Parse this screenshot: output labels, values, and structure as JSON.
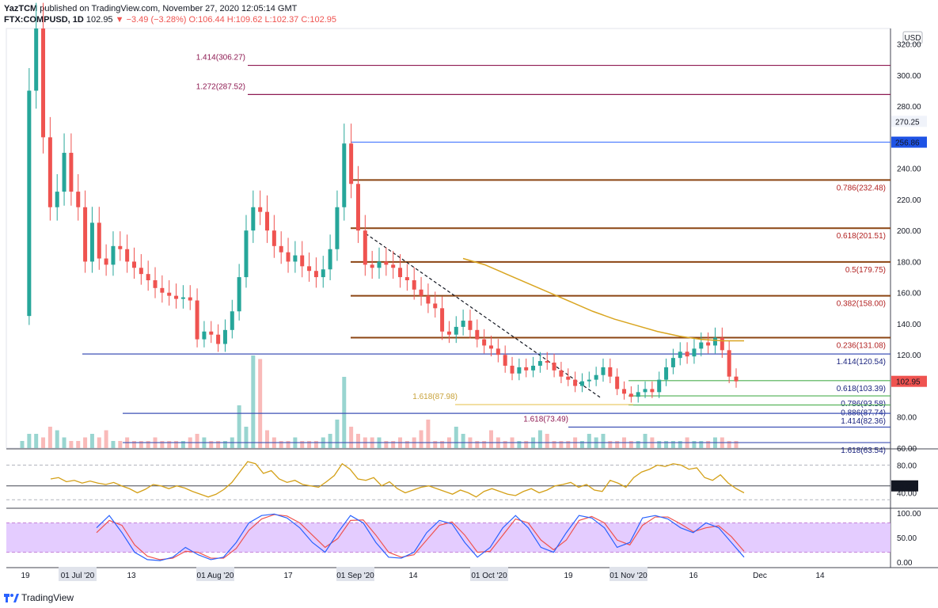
{
  "header": {
    "publisher": "YazTCM",
    "published_text": "published on TradingView.com, November 27, 2020 12:05:14 GMT",
    "symbol": "FTX:COMPUSD, 1D",
    "last": "102.95",
    "change": "▼ −3.49 (−3.28%)",
    "ohlc": "O:106.44 H:109.62 L:102.37 C:102.95"
  },
  "footer": {
    "brand": "TradingView"
  },
  "colors": {
    "up": "#26a69a",
    "down": "#ef5350",
    "rsi": "#d4a017",
    "ma": "#d9a520",
    "stoch_k": "#2962ff",
    "stoch_d": "#ef5350",
    "band": "#e1c7ff"
  },
  "chart_data": {
    "type": "candlestick",
    "currency_label": "USD",
    "price_axis": {
      "ylim": [
        60,
        330
      ],
      "ticks": [
        "320.00",
        "300.00",
        "280.00",
        "270.25",
        "256.86",
        "240.00",
        "220.00",
        "200.00",
        "180.00",
        "160.00",
        "140.00",
        "120.00",
        "102.95",
        "80.00",
        "60.00"
      ]
    },
    "last_price": "102.95",
    "x_labels": [
      "19",
      "01 Jul '20",
      "13",
      "01 Aug '20",
      "17",
      "01 Sep '20",
      "14",
      "01 Oct '20",
      "19",
      "01 Nov '20",
      "16",
      "Dec",
      "14"
    ],
    "fib_levels": [
      {
        "label": "0.786(232.48)",
        "value": 232.48
      },
      {
        "label": "0.618(201.51)",
        "value": 201.51
      },
      {
        "label": "0.5(179.75)",
        "value": 179.75
      },
      {
        "label": "0.382(158.00)",
        "value": 158.0
      },
      {
        "label": "0.236(131.08)",
        "value": 131.08
      }
    ],
    "extension_levels": [
      {
        "label": "1.414(306.27)",
        "value": 306.27
      },
      {
        "label": "1.272(287.52)",
        "value": 287.52
      },
      {
        "label": "1.414(120.54)",
        "value": 120.54
      },
      {
        "label": "0.618(103.39)",
        "value": 103.39
      },
      {
        "label": "0.786(93.58)",
        "value": 93.58
      },
      {
        "label": "0.886(87.74)",
        "value": 87.74
      },
      {
        "label": "1.618(87.98)",
        "value": 87.98
      },
      {
        "label": "1.414(82.36)",
        "value": 82.36
      },
      {
        "label": "1.618(73.49)",
        "value": 73.49
      },
      {
        "label": "1.618(63.54)",
        "value": 63.54
      }
    ],
    "price_series": [
      145,
      290,
      330,
      260,
      215,
      225,
      250,
      225,
      215,
      180,
      205,
      182,
      178,
      190,
      188,
      180,
      176,
      172,
      168,
      163,
      160,
      158,
      156,
      157,
      155,
      130,
      135,
      133,
      127,
      136,
      148,
      170,
      200,
      215,
      212,
      200,
      190,
      186,
      180,
      184,
      177,
      174,
      170,
      175,
      188,
      215,
      256,
      230,
      200,
      178,
      176,
      180,
      178,
      176,
      170,
      168,
      162,
      158,
      153,
      150,
      135,
      133,
      138,
      142,
      136,
      130,
      126,
      124,
      120,
      113,
      108,
      112,
      110,
      113,
      116,
      115,
      110,
      106,
      104,
      100,
      103,
      104,
      107,
      112,
      106,
      98,
      95,
      93,
      96,
      98,
      96,
      104,
      112,
      118,
      122,
      119,
      124,
      128,
      126,
      131,
      123,
      106,
      102.95
    ],
    "volume": [
      2,
      4,
      4,
      3,
      6,
      5,
      3,
      2,
      2,
      3,
      4,
      3,
      5,
      2,
      2,
      3,
      2,
      2,
      2,
      3,
      2,
      2,
      2,
      2,
      3,
      4,
      3,
      2,
      2,
      2,
      3,
      12,
      6,
      26,
      25,
      5,
      3,
      2,
      2,
      3,
      2,
      2,
      2,
      3,
      4,
      8,
      20,
      6,
      4,
      3,
      3,
      3,
      2,
      2,
      3,
      2,
      3,
      5,
      8,
      2,
      2,
      3,
      6,
      4,
      3,
      2,
      2,
      5,
      3,
      2,
      3,
      2,
      2,
      3,
      5,
      4,
      2,
      2,
      2,
      3,
      2,
      4,
      3,
      4,
      2,
      2,
      3,
      2,
      2,
      4,
      3,
      2,
      2,
      2,
      2,
      3,
      2,
      2,
      2,
      3,
      3,
      2,
      2
    ],
    "ma_series": [
      182,
      178,
      172,
      166,
      160,
      154,
      148,
      143,
      139,
      135,
      132,
      130,
      129,
      129
    ],
    "rsi": {
      "ticks": [
        "80.00",
        "50.00",
        "40.00"
      ],
      "level": "50.00",
      "series": [
        60,
        62,
        56,
        58,
        54,
        57,
        54,
        52,
        55,
        50,
        46,
        40,
        45,
        52,
        50,
        46,
        50,
        47,
        42,
        38,
        34,
        38,
        45,
        55,
        70,
        85,
        82,
        68,
        72,
        60,
        55,
        58,
        52,
        50,
        48,
        56,
        65,
        82,
        74,
        60,
        58,
        62,
        50,
        56,
        46,
        40,
        44,
        48,
        50,
        46,
        42,
        38,
        44,
        40,
        34,
        42,
        46,
        42,
        38,
        36,
        42,
        46,
        40,
        44,
        50,
        52,
        55,
        48,
        52,
        44,
        42,
        58,
        54,
        48,
        62,
        70,
        74,
        80,
        78,
        82,
        80,
        74,
        76,
        62,
        58,
        66,
        54,
        46,
        40
      ]
    },
    "stoch": {
      "ticks": [
        "100.00",
        "50.00",
        "0.00"
      ],
      "k": [
        70,
        95,
        60,
        20,
        5,
        3,
        10,
        30,
        15,
        5,
        10,
        40,
        80,
        95,
        98,
        90,
        70,
        40,
        20,
        60,
        95,
        80,
        40,
        10,
        8,
        20,
        60,
        85,
        78,
        40,
        10,
        30,
        70,
        95,
        70,
        30,
        20,
        60,
        95,
        90,
        70,
        30,
        40,
        90,
        95,
        88,
        70,
        60,
        80,
        70,
        40,
        10
      ],
      "d": [
        60,
        85,
        75,
        35,
        12,
        5,
        8,
        22,
        20,
        8,
        8,
        28,
        65,
        88,
        97,
        94,
        80,
        55,
        30,
        48,
        85,
        86,
        55,
        20,
        10,
        15,
        45,
        75,
        82,
        55,
        20,
        22,
        55,
        88,
        80,
        45,
        25,
        45,
        85,
        93,
        80,
        45,
        35,
        75,
        92,
        92,
        78,
        62,
        70,
        74,
        52,
        22
      ]
    }
  }
}
